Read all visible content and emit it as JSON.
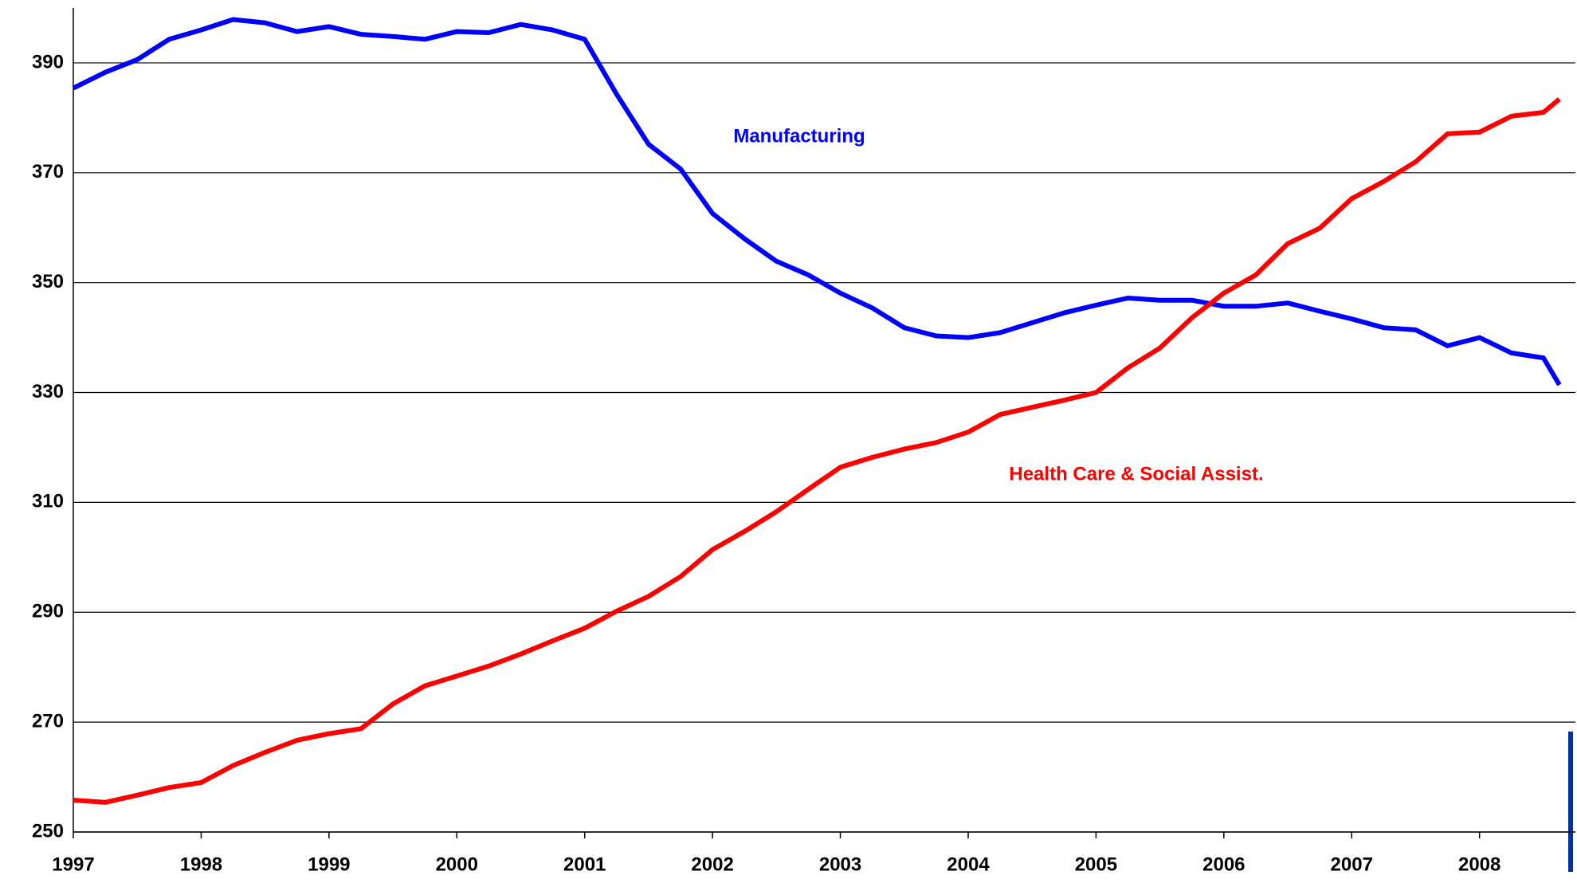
{
  "chart_data": {
    "type": "line",
    "x": [
      1997,
      1997.25,
      1997.5,
      1997.75,
      1998,
      1998.25,
      1998.5,
      1998.75,
      1999,
      1999.25,
      1999.5,
      1999.75,
      2000,
      2000.25,
      2000.5,
      2000.75,
      2001,
      2001.25,
      2001.5,
      2001.75,
      2002,
      2002.25,
      2002.5,
      2002.75,
      2003,
      2003.25,
      2003.5,
      2003.75,
      2004,
      2004.25,
      2004.5,
      2004.75,
      2005,
      2005.25,
      2005.5,
      2005.75,
      2006,
      2006.25,
      2006.5,
      2006.75,
      2007,
      2007.25,
      2007.5,
      2007.75,
      2008,
      2008.25,
      2008.5,
      2008.625
    ],
    "series": [
      {
        "name": "Manufacturing",
        "color": "#0000ff",
        "values": [
          385.4,
          388.3,
          390.6,
          394.3,
          396,
          397.9,
          397.3,
          395.7,
          396.6,
          395.2,
          394.8,
          394.3,
          395.7,
          395.5,
          397,
          396,
          394.3,
          384.3,
          375.2,
          370.7,
          362.6,
          358,
          353.9,
          351.4,
          348.1,
          345.4,
          341.8,
          340.3,
          340,
          340.9,
          342.7,
          344.5,
          345.9,
          347.2,
          346.8,
          346.8,
          345.7,
          345.7,
          346.3,
          344.8,
          343.4,
          341.8,
          341.4,
          338.5,
          340,
          337.2,
          336.3,
          331.4
        ]
      },
      {
        "name": "Health Care & Social Assist.",
        "color": "#ff0000",
        "values": [
          255.8,
          255.4,
          256.7,
          258.1,
          259,
          262.1,
          264.5,
          266.7,
          267.9,
          268.8,
          273.3,
          276.6,
          278.4,
          280.2,
          282.4,
          284.8,
          287.1,
          290.2,
          292.9,
          296.5,
          301.4,
          304.7,
          308.3,
          312.4,
          316.4,
          318.2,
          319.7,
          320.9,
          322.8,
          326,
          327.3,
          328.6,
          330,
          334.5,
          338.1,
          343.6,
          348.1,
          351.4,
          357.1,
          359.9,
          365.3,
          368.4,
          372,
          377.1,
          377.4,
          380.3,
          381,
          383.4
        ]
      }
    ],
    "xlim": [
      1997,
      2008.75
    ],
    "xticks": [
      1997,
      1998,
      1999,
      2000,
      2001,
      2002,
      2003,
      2004,
      2005,
      2006,
      2007,
      2008
    ],
    "ylim": [
      250,
      400
    ],
    "yticks": [
      250,
      270,
      290,
      310,
      330,
      350,
      370,
      390
    ],
    "grid": true
  }
}
